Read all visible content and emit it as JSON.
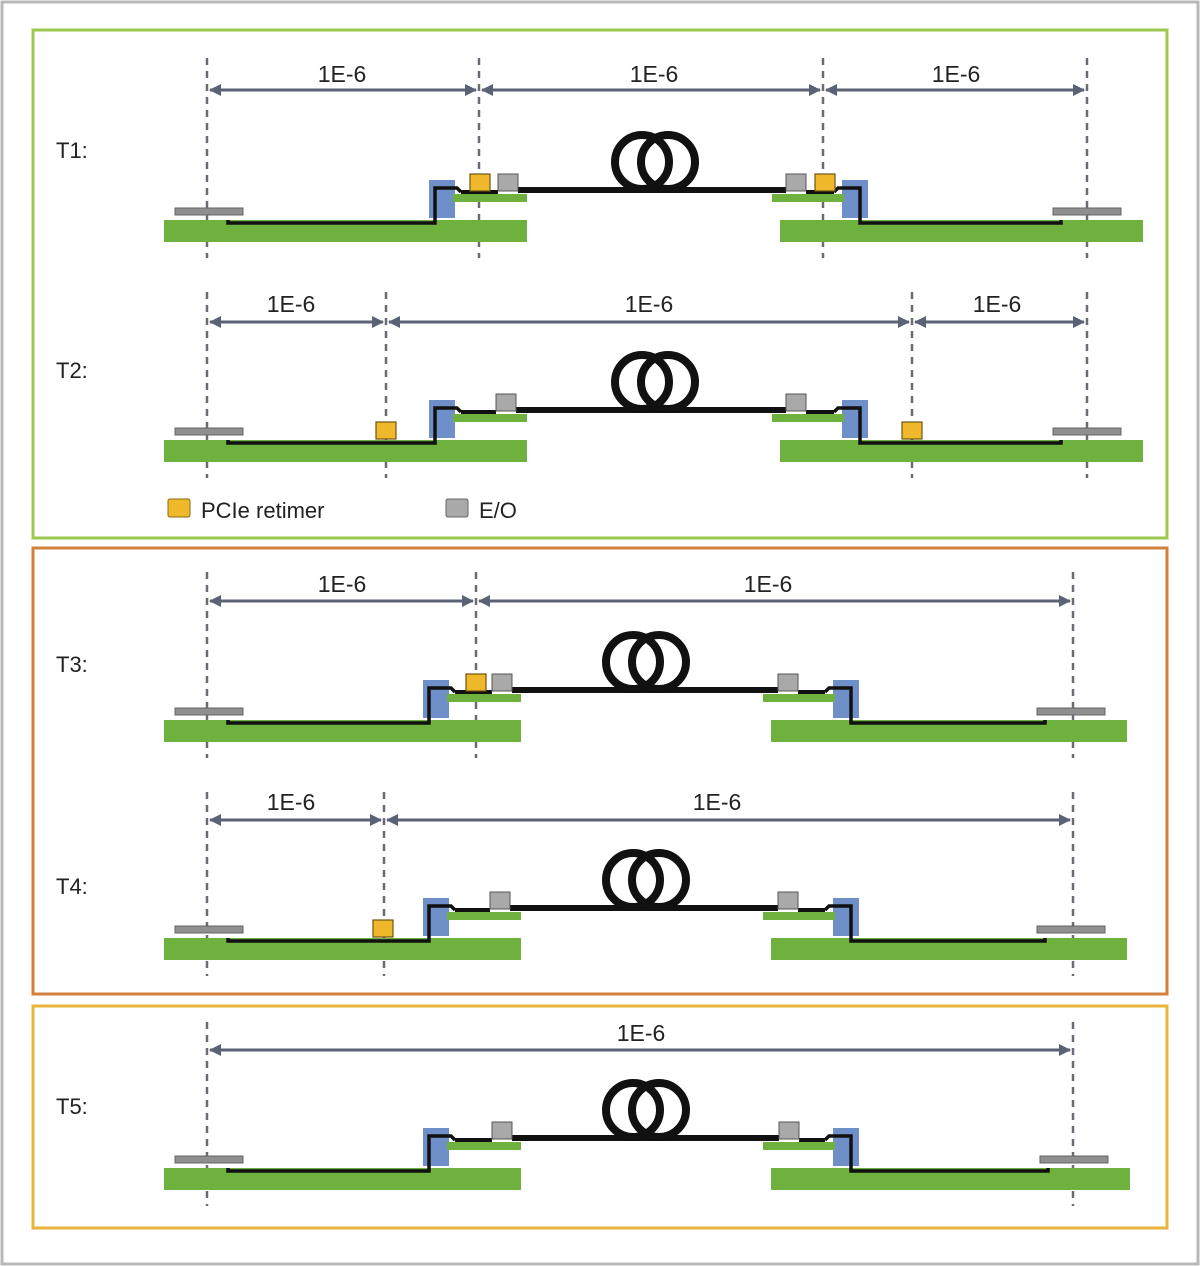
{
  "colors": {
    "outer_border": "#b8b8b8",
    "group1_border": "#9cc84e",
    "group2_border": "#d2803c",
    "group3_border": "#e8b53a",
    "board": "#6fb13f",
    "connector": "#6f8fc8",
    "retimer": "#f0b92c",
    "eo": "#a9a9a9",
    "arrow": "#5b6275",
    "guide": "#6b6b75",
    "trace": "#111111"
  },
  "legend": {
    "retimer_label": "PCIe retimer",
    "retimer_icon": "retimer-swatch",
    "eo_label": "E/O",
    "eo_icon": "eo-swatch"
  },
  "rows": [
    {
      "id": "T1",
      "label": "T1:",
      "segments": [
        "1E-6",
        "1E-6",
        "1E-6"
      ]
    },
    {
      "id": "T2",
      "label": "T2:",
      "segments": [
        "1E-6",
        "1E-6",
        "1E-6"
      ]
    },
    {
      "id": "T3",
      "label": "T3:",
      "segments": [
        "1E-6",
        "1E-6"
      ]
    },
    {
      "id": "T4",
      "label": "T4:",
      "segments": [
        "1E-6",
        "1E-6"
      ]
    },
    {
      "id": "T5",
      "label": "T5:",
      "segments": [
        "1E-6"
      ]
    }
  ]
}
